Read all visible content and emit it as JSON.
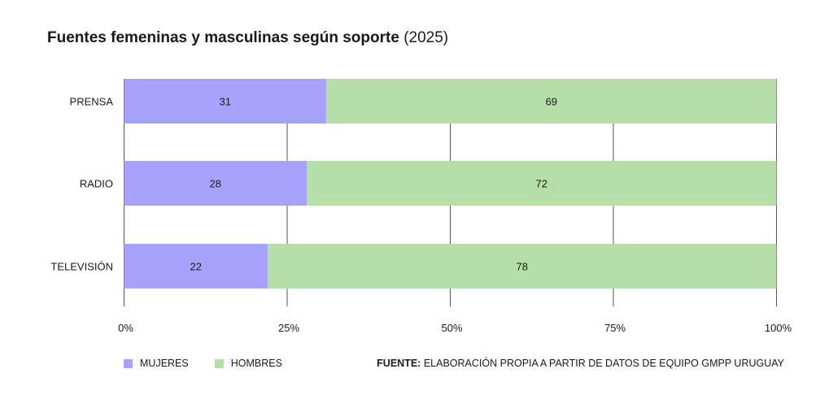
{
  "chart_data": {
    "type": "bar",
    "orientation": "horizontal",
    "stacked": true,
    "title": "Fuentes femeninas y masculinas según soporte",
    "title_suffix": "(2025)",
    "categories": [
      "PRENSA",
      "RADIO",
      "TELEVISIÓN"
    ],
    "series": [
      {
        "name": "MUJERES",
        "color": "#a7a2fc",
        "values": [
          31,
          28,
          22
        ]
      },
      {
        "name": "HOMBRES",
        "color": "#b5dea8",
        "values": [
          69,
          72,
          78
        ]
      }
    ],
    "xlim": [
      0,
      100
    ],
    "xticks": [
      0,
      25,
      50,
      75,
      100
    ],
    "xtick_labels": [
      "0%",
      "25%",
      "50%",
      "75%",
      "100%"
    ],
    "grid": true,
    "legend_position": "bottom-left",
    "source_label": "FUENTE:",
    "source_text": "ELABORACIÓN PROPIA A PARTIR DE DATOS DE EQUIPO GMPP URUGUAY"
  }
}
